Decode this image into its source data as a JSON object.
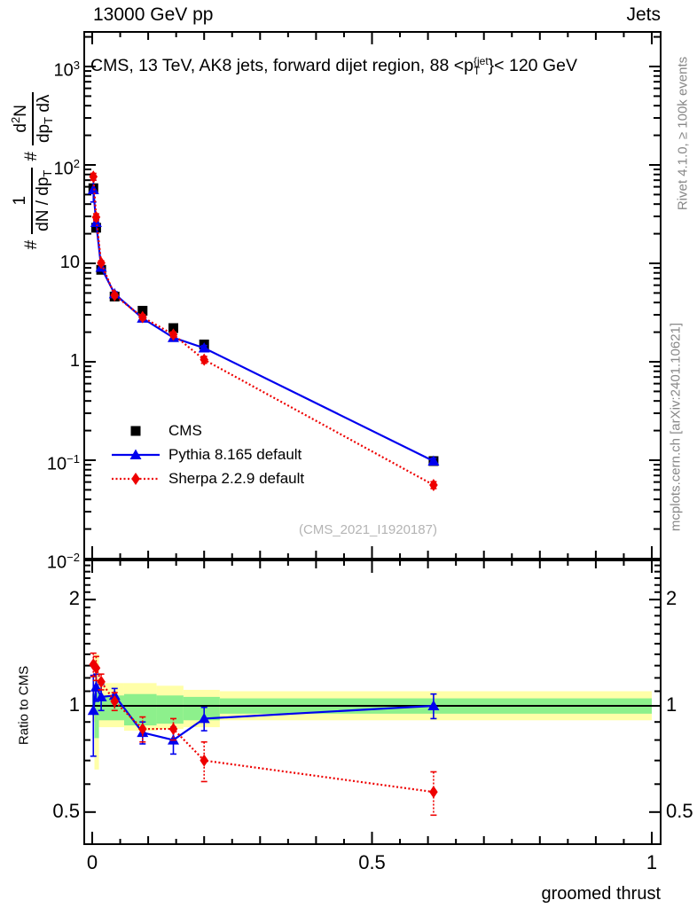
{
  "header": {
    "left": "13000 GeV pp",
    "right": "Jets"
  },
  "title": {
    "pre": "CMS, 13 TeV, AK8 jets, forward dijet region, 88 <p",
    "sup": "{jet",
    "sub": "T",
    "post": "}< 120 GeV"
  },
  "watermark": "(CMS_2021_I1920187)",
  "side_notes": {
    "top": "Rivet 4.1.0, ≥ 100k events",
    "bottom": "mcplots.cern.ch [arXiv:2401.10621]"
  },
  "axes": {
    "x_label": "groomed thrust",
    "ratio_label": "Ratio to CMS",
    "y_label": {
      "hash1": "#",
      "frac1_num": "1",
      "frac1_den_main": "dN / dp",
      "frac1_den_sub": "T",
      "hash2": "#",
      "frac2_num_main": "d",
      "frac2_num_sup": "2",
      "frac2_num_tail": "N",
      "frac2_den_main": "dp",
      "frac2_den_sub": "T",
      "frac2_den_tail": " dλ"
    }
  },
  "chart_data": {
    "type": "line",
    "title": "CMS, 13 TeV, AK8 jets, forward dijet region, 88 <p_T^{jet}< 120 GeV",
    "xlabel": "groomed thrust",
    "ylabel": "# 1/(dN/dp_T) # d2N/(dp_T dλ)",
    "ratio_ylabel": "Ratio to CMS",
    "x_range": [
      -0.014,
      1.016
    ],
    "main_y_log_range": [
      0.01,
      2250
    ],
    "ratio_y_log_range": [
      0.405,
      2.58
    ],
    "grid": false,
    "legend_position": "inside-left-middle",
    "x_ticks": [
      {
        "label": "0",
        "value": 0
      },
      {
        "label": "0.5",
        "value": 0.5
      },
      {
        "label": "1",
        "value": 1
      }
    ],
    "main_y_ticks": [
      {
        "base": "10",
        "exp": "3",
        "value": 1000
      },
      {
        "base": "10",
        "exp": "2",
        "value": 100
      },
      {
        "base": "10",
        "exp": "",
        "value": 10
      },
      {
        "base": "1",
        "exp": "",
        "value": 1
      },
      {
        "base": "10",
        "exp": "−1",
        "value": 0.1
      },
      {
        "base": "10",
        "exp": "−2",
        "value": 0.01
      }
    ],
    "ratio_y_ticks": [
      {
        "label": "2",
        "value": 2
      },
      {
        "label": "1",
        "value": 1
      },
      {
        "label": "0.5",
        "value": 0.5
      }
    ],
    "x": [
      0.002,
      0.007,
      0.016,
      0.04,
      0.09,
      0.145,
      0.2,
      0.61
    ],
    "series": [
      {
        "name": "CMS",
        "color": "#000000",
        "marker": "square",
        "line": "none",
        "values": [
          58,
          23,
          8.6,
          4.6,
          3.3,
          2.2,
          1.5,
          0.098
        ],
        "main_rel_err": [
          0.04,
          0.04,
          0.03,
          0.03,
          0.04,
          0.04,
          0.05,
          0.05
        ],
        "ratio": null
      },
      {
        "name": "Pythia 8.165 default",
        "color": "#0000ee",
        "marker": "triangle",
        "line": "solid",
        "values": [
          56,
          26,
          9.1,
          4.9,
          2.77,
          1.76,
          1.38,
          0.098
        ],
        "main_rel_err": [
          0.25,
          0.08,
          0.06,
          0.05,
          0.06,
          0.06,
          0.06,
          0.07
        ],
        "ratio": [
          0.97,
          1.13,
          1.06,
          1.07,
          0.84,
          0.8,
          0.92,
          1.0
        ],
        "ratio_err": [
          0.25,
          0.1,
          0.09,
          0.05,
          0.06,
          0.07,
          0.07,
          0.08
        ]
      },
      {
        "name": "Sherpa 2.2.9 default",
        "color": "#ee0000",
        "marker": "diamond",
        "line": "dotted",
        "values": [
          76,
          29.5,
          10.1,
          4.74,
          2.84,
          1.89,
          1.05,
          0.056
        ],
        "main_rel_err": [
          0.08,
          0.08,
          0.05,
          0.05,
          0.06,
          0.06,
          0.08,
          0.08
        ],
        "ratio": [
          1.31,
          1.28,
          1.17,
          1.03,
          0.86,
          0.86,
          0.7,
          0.57
        ],
        "ratio_err": [
          0.1,
          0.1,
          0.06,
          0.06,
          0.07,
          0.06,
          0.09,
          0.08
        ]
      }
    ],
    "band_colors": {
      "yellow": "#ffffa8",
      "green": "#8df08c"
    },
    "ratio_bands": [
      {
        "x0": 0.0,
        "x1": 0.004,
        "y_lo": 0.9,
        "y_hi": 1.13,
        "g_lo": 0.94,
        "g_hi": 1.08
      },
      {
        "x0": 0.004,
        "x1": 0.012,
        "y_lo": 0.66,
        "y_hi": 1.4,
        "g_lo": 0.81,
        "g_hi": 1.09
      },
      {
        "x0": 0.012,
        "x1": 0.057,
        "y_lo": 0.87,
        "y_hi": 1.16,
        "g_lo": 0.91,
        "g_hi": 1.07
      },
      {
        "x0": 0.057,
        "x1": 0.115,
        "y_lo": 0.85,
        "y_hi": 1.16,
        "g_lo": 0.88,
        "g_hi": 1.08
      },
      {
        "x0": 0.115,
        "x1": 0.163,
        "y_lo": 0.86,
        "y_hi": 1.14,
        "g_lo": 0.89,
        "g_hi": 1.07
      },
      {
        "x0": 0.163,
        "x1": 0.228,
        "y_lo": 0.87,
        "y_hi": 1.11,
        "g_lo": 0.91,
        "g_hi": 1.06
      },
      {
        "x0": 0.228,
        "x1": 1.0,
        "y_lo": 0.91,
        "y_hi": 1.1,
        "g_lo": 0.95,
        "g_hi": 1.05
      }
    ]
  }
}
